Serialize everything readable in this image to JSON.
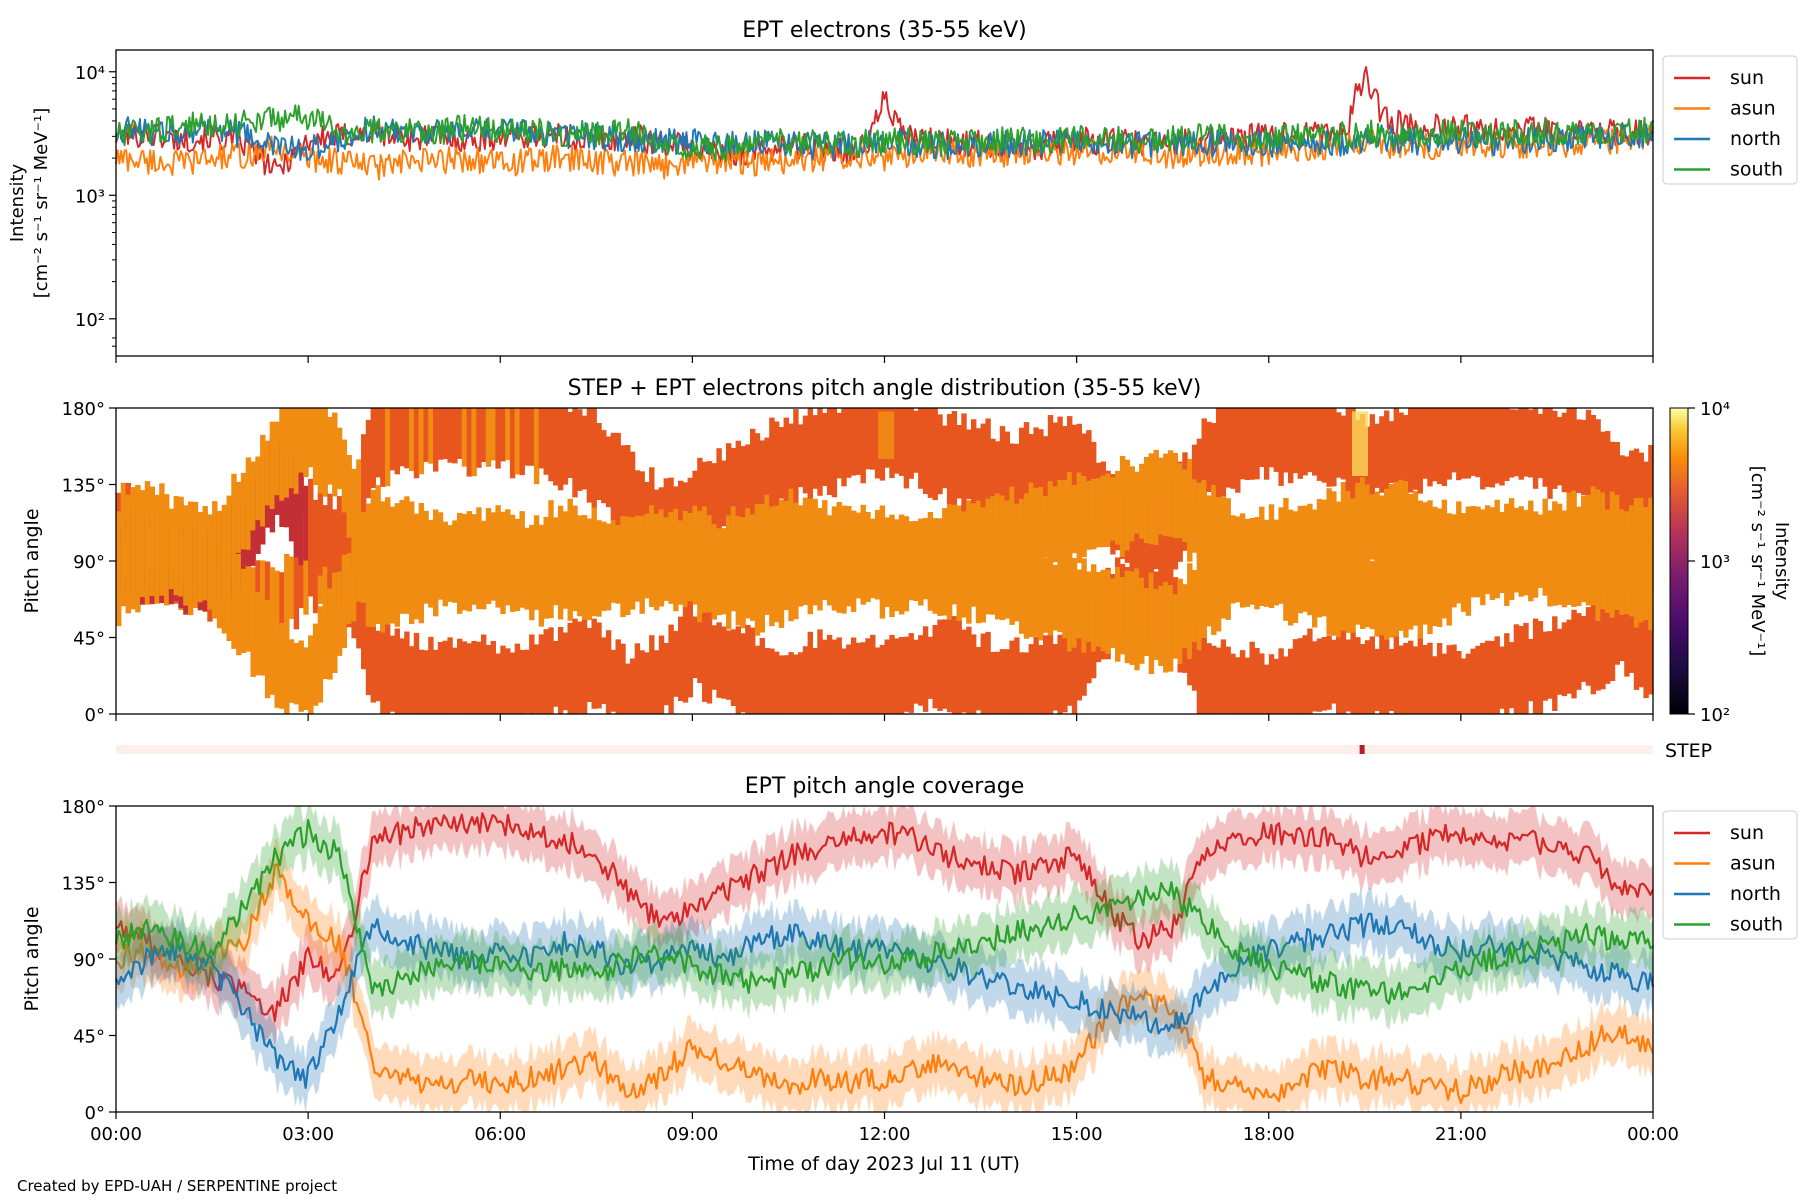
{
  "footer": "Created by EPD-UAH / SERPENTINE project",
  "chart_data": [
    {
      "type": "line",
      "title": "EPT electrons (35-55 keV)",
      "ylabel": "Intensity",
      "yunit": "[cm⁻² s⁻¹ sr⁻¹ MeV⁻¹]",
      "yscale": "log",
      "ylim": [
        50,
        15000
      ],
      "xlim_hours": [
        0,
        24
      ],
      "yticks": [
        {
          "value": 100,
          "label": "10²"
        },
        {
          "value": 1000,
          "label": "10³"
        },
        {
          "value": 10000,
          "label": "10⁴"
        }
      ],
      "legend": "upper-right-outside",
      "grid": false,
      "x": [
        0,
        0.5,
        1,
        1.5,
        2,
        2.5,
        3,
        3.5,
        4,
        4.5,
        5,
        5.5,
        6,
        6.5,
        7,
        7.5,
        8,
        8.5,
        9,
        9.5,
        10,
        10.5,
        11,
        11.5,
        11.75,
        12,
        12.25,
        12.5,
        13,
        13.5,
        14,
        14.5,
        15,
        15.5,
        16,
        16.5,
        17,
        17.5,
        18,
        18.5,
        19,
        19.25,
        19.5,
        19.75,
        20,
        20.5,
        21,
        21.5,
        22,
        22.5,
        23,
        23.5,
        24
      ],
      "series": [
        {
          "name": "sun",
          "color": "#d62728",
          "values": [
            3000,
            3200,
            2800,
            3000,
            2600,
            1500,
            2800,
            3000,
            3200,
            2900,
            3000,
            2800,
            3000,
            3100,
            2900,
            2800,
            3000,
            2700,
            2400,
            2200,
            2300,
            2500,
            2400,
            2300,
            2500,
            6000,
            3200,
            2800,
            2700,
            2600,
            2500,
            2500,
            2800,
            2700,
            2600,
            2700,
            2800,
            2900,
            3000,
            3100,
            3200,
            3600,
            9500,
            4500,
            3800,
            3600,
            3500,
            3500,
            3400,
            3300,
            3200,
            3300,
            3200
          ]
        },
        {
          "name": "asun",
          "color": "#ff7f0e",
          "values": [
            2000,
            1900,
            1800,
            2000,
            2100,
            2400,
            2000,
            1900,
            1700,
            1800,
            1900,
            2000,
            1800,
            1900,
            2000,
            1900,
            1800,
            1700,
            2000,
            1900,
            1800,
            1900,
            2000,
            2100,
            2200,
            2000,
            2100,
            2200,
            2300,
            2100,
            2200,
            2300,
            2200,
            2300,
            2200,
            2100,
            2200,
            2300,
            2200,
            2400,
            2500,
            2600,
            2700,
            2500,
            2600,
            2500,
            2700,
            2600,
            2500,
            2600,
            2700,
            2800,
            2900
          ]
        },
        {
          "name": "north",
          "color": "#1f77b4",
          "values": [
            3500,
            3200,
            3300,
            3600,
            3000,
            2500,
            2300,
            2800,
            3500,
            3400,
            3300,
            3200,
            3400,
            3300,
            3100,
            3000,
            2900,
            2800,
            2700,
            2600,
            2700,
            2600,
            2500,
            2600,
            2700,
            2600,
            2700,
            2600,
            2500,
            2500,
            2600,
            2700,
            2600,
            2500,
            2600,
            2700,
            2600,
            2700,
            2600,
            2500,
            2600,
            2700,
            2800,
            2900,
            2800,
            2700,
            2800,
            2700,
            2800,
            2900,
            3000,
            2900,
            3000
          ]
        },
        {
          "name": "south",
          "color": "#2ca02c",
          "values": [
            3000,
            3300,
            3600,
            3800,
            3900,
            4200,
            4300,
            3200,
            3300,
            3400,
            3300,
            3500,
            3400,
            3300,
            3200,
            3100,
            3300,
            2800,
            2500,
            2400,
            2600,
            2700,
            2600,
            2500,
            2700,
            2700,
            2800,
            2700,
            2600,
            2700,
            2800,
            2700,
            2900,
            2800,
            2800,
            2900,
            3000,
            2900,
            3000,
            3100,
            3000,
            3100,
            3200,
            3100,
            3000,
            3100,
            3200,
            3100,
            3200,
            3300,
            3200,
            3300,
            3400
          ]
        }
      ]
    },
    {
      "type": "heatmap",
      "title": "STEP + EPT electrons pitch angle distribution (35-55 keV)",
      "ylabel": "Pitch angle",
      "ylim": [
        0,
        180
      ],
      "yticks": [
        "0°",
        "45°",
        "90°",
        "135°",
        "180°"
      ],
      "colorbar": {
        "label": "Intensity",
        "unit": "[cm⁻² s⁻¹ sr⁻¹ MeV⁻¹]",
        "scale": "log",
        "range": [
          100,
          10000
        ],
        "ticks": [
          {
            "value": 100,
            "label": "10²"
          },
          {
            "value": 1000,
            "label": "10³"
          },
          {
            "value": 10000,
            "label": "10⁴"
          }
        ]
      },
      "step_label": "STEP",
      "step_marker_hour": 19.45,
      "colors": {
        "low": "#c42f36",
        "mid": "#e8561f",
        "high": "#f08c12",
        "peak": "#fcd95a",
        "step_bar": "#fdf0ea",
        "step_marker": "#b71c2c"
      }
    },
    {
      "type": "line",
      "title": "EPT pitch angle coverage",
      "ylabel": "Pitch angle",
      "xlabel": "Time of day 2023 Jul 11 (UT)",
      "ylim": [
        0,
        180
      ],
      "yticks": [
        "0°",
        "45°",
        "90°",
        "135°",
        "180°"
      ],
      "xticks": [
        "00:00",
        "03:00",
        "06:00",
        "09:00",
        "12:00",
        "15:00",
        "18:00",
        "21:00",
        "00:00"
      ],
      "legend": "upper-right-outside",
      "band_halfwidth_deg": 15,
      "x": [
        0,
        0.5,
        1,
        1.5,
        2,
        2.5,
        3,
        3.5,
        4,
        4.5,
        5,
        5.5,
        6,
        6.5,
        7,
        7.5,
        8,
        8.5,
        9,
        9.5,
        10,
        10.5,
        11,
        11.5,
        12,
        12.5,
        13,
        13.5,
        14,
        14.5,
        15,
        15.5,
        16,
        16.5,
        17,
        17.5,
        18,
        18.5,
        19,
        19.5,
        20,
        20.5,
        21,
        21.5,
        22,
        22.5,
        23,
        23.5,
        24
      ],
      "series": [
        {
          "name": "sun",
          "color": "#d62728",
          "values": [
            110,
            100,
            90,
            80,
            70,
            60,
            90,
            80,
            160,
            165,
            170,
            168,
            170,
            165,
            160,
            150,
            130,
            110,
            120,
            130,
            140,
            150,
            155,
            160,
            165,
            160,
            150,
            145,
            140,
            145,
            150,
            120,
            100,
            110,
            150,
            160,
            165,
            162,
            160,
            150,
            155,
            160,
            165,
            158,
            160,
            155,
            150,
            130,
            130
          ]
        },
        {
          "name": "asun",
          "color": "#ff7f0e",
          "values": [
            90,
            95,
            85,
            90,
            100,
            140,
            110,
            100,
            30,
            20,
            15,
            20,
            15,
            20,
            25,
            30,
            10,
            20,
            40,
            30,
            20,
            15,
            20,
            18,
            20,
            25,
            30,
            20,
            15,
            20,
            25,
            60,
            70,
            60,
            20,
            15,
            10,
            20,
            25,
            20,
            20,
            15,
            12,
            20,
            25,
            30,
            40,
            50,
            35
          ]
        },
        {
          "name": "north",
          "color": "#1f77b4",
          "values": [
            80,
            90,
            95,
            85,
            60,
            30,
            20,
            60,
            110,
            100,
            95,
            90,
            95,
            90,
            100,
            95,
            85,
            90,
            95,
            90,
            100,
            105,
            100,
            95,
            95,
            90,
            85,
            80,
            75,
            70,
            65,
            60,
            55,
            50,
            70,
            85,
            95,
            100,
            105,
            110,
            110,
            100,
            95,
            100,
            95,
            90,
            85,
            80,
            75
          ]
        },
        {
          "name": "south",
          "color": "#2ca02c",
          "values": [
            100,
            110,
            100,
            95,
            120,
            150,
            165,
            150,
            70,
            80,
            85,
            90,
            85,
            80,
            85,
            80,
            90,
            95,
            85,
            80,
            75,
            80,
            85,
            90,
            85,
            90,
            95,
            100,
            105,
            110,
            115,
            120,
            125,
            130,
            110,
            95,
            85,
            80,
            75,
            70,
            70,
            75,
            85,
            90,
            95,
            100,
            105,
            100,
            100
          ]
        }
      ]
    }
  ]
}
